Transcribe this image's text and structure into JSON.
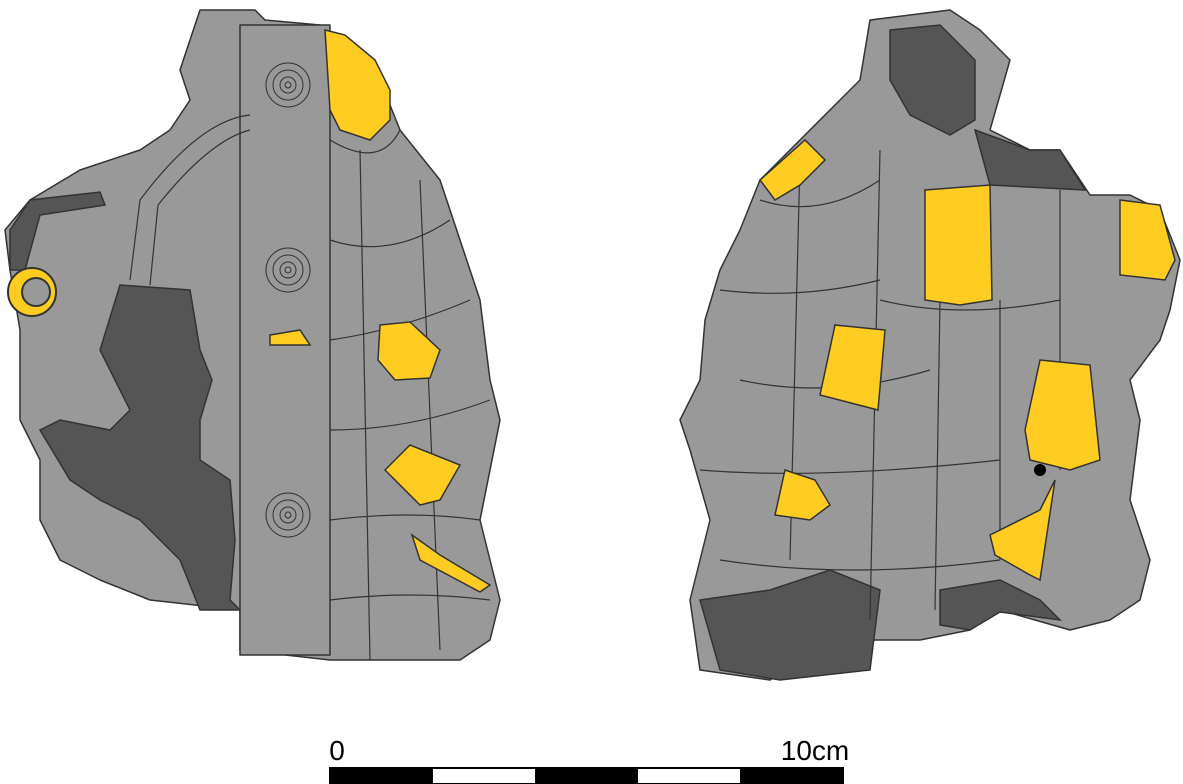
{
  "scale_bar": {
    "start_label": "0",
    "end_label": "10cm"
  }
}
